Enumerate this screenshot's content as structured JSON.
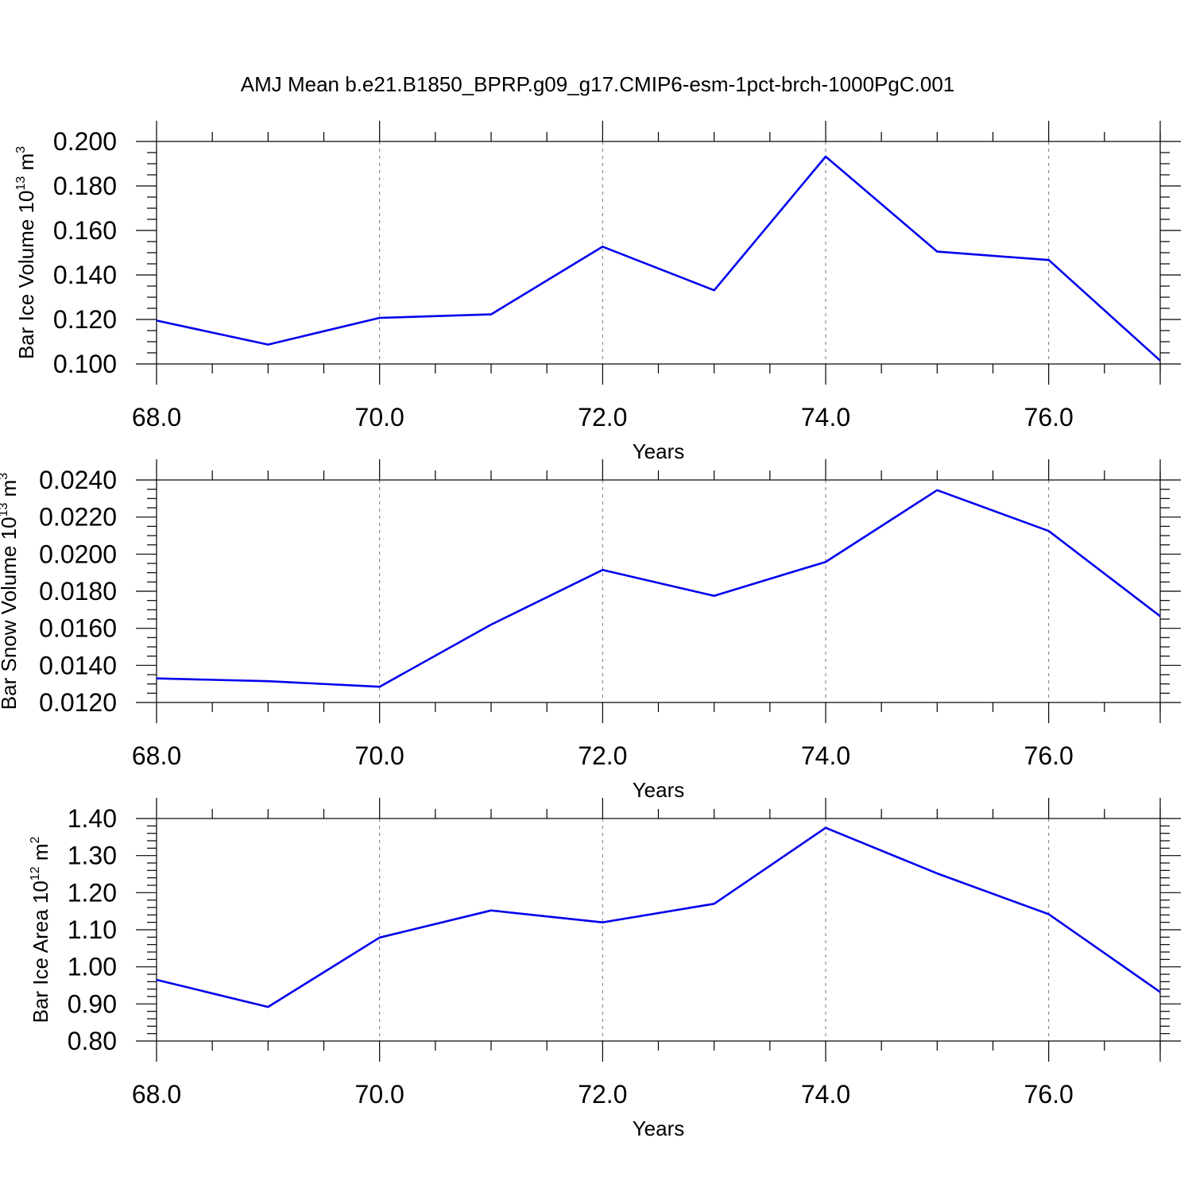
{
  "figure": {
    "title": "AMJ Mean b.e21.B1850_BPRP.g09_g17.CMIP6-esm-1pct-brch-1000PgC.001"
  },
  "chart_data": [
    {
      "type": "line",
      "title": "AMJ Mean b.e21.B1850_BPRP.g09_g17.CMIP6-esm-1pct-brch-1000PgC.001",
      "xlabel": "Years",
      "ylabel": {
        "text": "Bar Ice Volume 10",
        "sup1": "13",
        "unit": " m",
        "sup2": "3"
      },
      "xlim": [
        68,
        77
      ],
      "ylim": [
        0.1,
        0.2
      ],
      "xticks": [
        68,
        70,
        72,
        74,
        76
      ],
      "xtick_labels": [
        "68.0",
        "70.0",
        "72.0",
        "74.0",
        "76.0"
      ],
      "yticks": [
        0.1,
        0.12,
        0.14,
        0.16,
        0.18,
        0.2
      ],
      "ytick_labels": [
        "0.100",
        "0.120",
        "0.140",
        "0.160",
        "0.180",
        "0.200"
      ],
      "grid": "vertical dashed at major x ticks",
      "color": "#0000ee",
      "x": [
        68,
        69,
        70,
        71,
        72,
        73,
        74,
        75,
        76,
        77
      ],
      "y": [
        0.1195,
        0.1087,
        0.1207,
        0.1223,
        0.1527,
        0.1331,
        0.1932,
        0.1505,
        0.1467,
        0.1015
      ]
    },
    {
      "type": "line",
      "xlabel": "Years",
      "ylabel": {
        "text": "Bar Snow Volume 10",
        "sup1": "13",
        "unit": " m",
        "sup2": "3"
      },
      "xlim": [
        68,
        77
      ],
      "ylim": [
        0.012,
        0.024
      ],
      "xticks": [
        68,
        70,
        72,
        74,
        76
      ],
      "xtick_labels": [
        "68.0",
        "70.0",
        "72.0",
        "74.0",
        "76.0"
      ],
      "yticks": [
        0.012,
        0.014,
        0.016,
        0.018,
        0.02,
        0.022,
        0.024
      ],
      "ytick_labels": [
        "0.0120",
        "0.0140",
        "0.0160",
        "0.0180",
        "0.0200",
        "0.0220",
        "0.0240"
      ],
      "grid": "vertical dashed at major x ticks",
      "color": "#0000ee",
      "x": [
        68,
        69,
        70,
        71,
        72,
        73,
        74,
        75,
        76,
        77
      ],
      "y": [
        0.0133,
        0.01315,
        0.01285,
        0.0162,
        0.01915,
        0.01775,
        0.01958,
        0.02345,
        0.02125,
        0.01665
      ]
    },
    {
      "type": "line",
      "xlabel": "Years",
      "ylabel": {
        "text": "Bar Ice Area 10",
        "sup1": "12",
        "unit": " m",
        "sup2": "2"
      },
      "xlim": [
        68,
        77
      ],
      "ylim": [
        0.8,
        1.4
      ],
      "xticks": [
        68,
        70,
        72,
        74,
        76
      ],
      "xtick_labels": [
        "68.0",
        "70.0",
        "72.0",
        "74.0",
        "76.0"
      ],
      "yticks": [
        0.8,
        0.9,
        1.0,
        1.1,
        1.2,
        1.3,
        1.4
      ],
      "ytick_labels": [
        "0.80",
        "0.90",
        "1.00",
        "1.10",
        "1.20",
        "1.30",
        "1.40"
      ],
      "grid": "vertical dashed at major x ticks",
      "color": "#0000ee",
      "x": [
        68,
        69,
        70,
        71,
        72,
        73,
        74,
        75,
        76,
        77
      ],
      "y": [
        0.965,
        0.892,
        1.079,
        1.152,
        1.12,
        1.17,
        1.375,
        1.252,
        1.142,
        0.932
      ]
    }
  ]
}
